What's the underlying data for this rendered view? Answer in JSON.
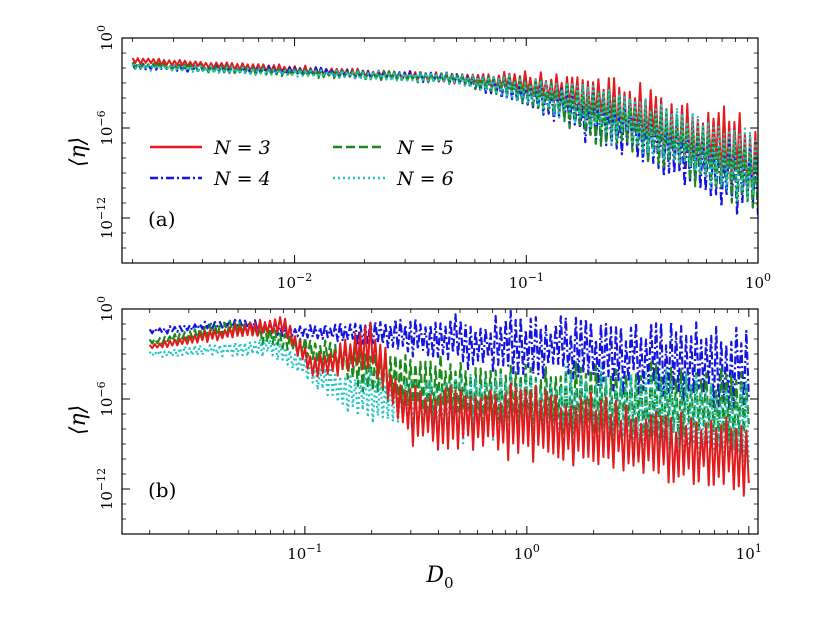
{
  "chart_data": [
    {
      "type": "line",
      "panel_label": "(a)",
      "xscale": "log",
      "yscale": "log",
      "xlim": [
        0.0018,
        1.0
      ],
      "ylim": [
        1e-15,
        1.0
      ],
      "xticks": [
        {
          "value": 0.01,
          "base": "10",
          "exp": "−2"
        },
        {
          "value": 0.1,
          "base": "10",
          "exp": "−1"
        },
        {
          "value": 1.0,
          "base": "10",
          "exp": "0"
        }
      ],
      "yticks": [
        {
          "value": 1.0,
          "base": "10",
          "exp": "0"
        },
        {
          "value": 1e-06,
          "base": "10",
          "exp": "−6"
        },
        {
          "value": 1e-12,
          "base": "10",
          "exp": "−12"
        }
      ],
      "xlabel": "",
      "ylabel": "⟨η⟩",
      "x_range": [
        0.002,
        1.0
      ],
      "legend": [
        {
          "label": "N = 3",
          "color": "#e41a1c",
          "dash": "solid"
        },
        {
          "label": "N = 5",
          "color": "#1a8a1a",
          "dash": "dashed"
        },
        {
          "label": "N = 4",
          "color": "#1515e0",
          "dash": "dashdot"
        },
        {
          "label": "N = 6",
          "color": "#22c4c4",
          "dash": "dotted"
        }
      ],
      "series": [
        {
          "name": "N = 3",
          "color": "#e41a1c",
          "dash": "solid",
          "trend": [
            [
              0.002,
              -1.5
            ],
            [
              0.01,
              -2.1
            ],
            [
              0.05,
              -2.7
            ],
            [
              0.1,
              -3.0
            ],
            [
              0.3,
              -5.0
            ],
            [
              1.0,
              -8.2
            ]
          ],
          "noise": [
            [
              0.002,
              0.2
            ],
            [
              0.05,
              0.35
            ],
            [
              0.1,
              0.7
            ],
            [
              0.2,
              1.8
            ],
            [
              1.0,
              2.6
            ]
          ],
          "seed": 3
        },
        {
          "name": "N = 4",
          "color": "#1515e0",
          "dash": "dashdot",
          "trend": [
            [
              0.002,
              -1.9
            ],
            [
              0.01,
              -2.2
            ],
            [
              0.05,
              -2.7
            ],
            [
              0.1,
              -3.8
            ],
            [
              0.3,
              -6.5
            ],
            [
              1.0,
              -10.0
            ]
          ],
          "noise": [
            [
              0.002,
              0.2
            ],
            [
              0.05,
              0.35
            ],
            [
              0.1,
              0.9
            ],
            [
              0.2,
              1.8
            ],
            [
              1.0,
              2.3
            ]
          ],
          "seed": 4
        },
        {
          "name": "N = 5",
          "color": "#1a8a1a",
          "dash": "dashed",
          "trend": [
            [
              0.002,
              -1.8
            ],
            [
              0.01,
              -2.3
            ],
            [
              0.05,
              -2.7
            ],
            [
              0.1,
              -3.5
            ],
            [
              0.3,
              -6.0
            ],
            [
              1.0,
              -9.5
            ]
          ],
          "noise": [
            [
              0.002,
              0.2
            ],
            [
              0.05,
              0.35
            ],
            [
              0.1,
              0.9
            ],
            [
              0.2,
              1.8
            ],
            [
              1.0,
              2.3
            ]
          ],
          "seed": 5
        },
        {
          "name": "N = 6",
          "color": "#22c4c4",
          "dash": "dotted",
          "trend": [
            [
              0.002,
              -1.9
            ],
            [
              0.01,
              -2.3
            ],
            [
              0.05,
              -2.7
            ],
            [
              0.1,
              -3.5
            ],
            [
              0.3,
              -5.5
            ],
            [
              1.0,
              -9.0
            ]
          ],
          "noise": [
            [
              0.002,
              0.2
            ],
            [
              0.05,
              0.35
            ],
            [
              0.1,
              0.9
            ],
            [
              0.2,
              1.8
            ],
            [
              1.0,
              2.6
            ]
          ],
          "seed": 6
        }
      ]
    },
    {
      "type": "line",
      "panel_label": "(b)",
      "xscale": "log",
      "yscale": "log",
      "xlim": [
        0.015,
        11.0
      ],
      "ylim": [
        1e-15,
        1.0
      ],
      "xticks": [
        {
          "value": 0.1,
          "base": "10",
          "exp": "−1"
        },
        {
          "value": 1.0,
          "base": "10",
          "exp": "0"
        },
        {
          "value": 10.0,
          "base": "10",
          "exp": "1"
        }
      ],
      "yticks": [
        {
          "value": 1.0,
          "base": "10",
          "exp": "0"
        },
        {
          "value": 1e-06,
          "base": "10",
          "exp": "−6"
        },
        {
          "value": 1e-12,
          "base": "10",
          "exp": "−12"
        }
      ],
      "xlabel_main": "D",
      "xlabel_sub": "0",
      "ylabel": "⟨η⟩",
      "x_range": [
        0.02,
        10.0
      ],
      "series": [
        {
          "name": "N = 4",
          "color": "#1515e0",
          "dash": "dashdot",
          "trend": [
            [
              0.02,
              -1.5
            ],
            [
              0.05,
              -0.9
            ],
            [
              0.08,
              -1.5
            ],
            [
              0.2,
              -1.6
            ],
            [
              1.0,
              -2.5
            ],
            [
              10.0,
              -4.0
            ]
          ],
          "noise": [
            [
              0.02,
              0.2
            ],
            [
              0.1,
              0.4
            ],
            [
              0.3,
              1.2
            ],
            [
              1.0,
              2.2
            ],
            [
              10.0,
              2.8
            ]
          ],
          "seed": 14
        },
        {
          "name": "N = 5",
          "color": "#1a8a1a",
          "dash": "dashed",
          "trend": [
            [
              0.02,
              -2.2
            ],
            [
              0.05,
              -1.2
            ],
            [
              0.1,
              -2.5
            ],
            [
              0.3,
              -5.0
            ],
            [
              1.0,
              -6.0
            ],
            [
              10.0,
              -6.5
            ]
          ],
          "noise": [
            [
              0.02,
              0.2
            ],
            [
              0.1,
              0.8
            ],
            [
              0.3,
              2.0
            ],
            [
              1.0,
              2.5
            ],
            [
              10.0,
              2.8
            ]
          ],
          "seed": 15
        },
        {
          "name": "N = 6",
          "color": "#22c4c4",
          "dash": "dotted",
          "trend": [
            [
              0.02,
              -3.0
            ],
            [
              0.07,
              -2.5
            ],
            [
              0.15,
              -5.5
            ],
            [
              0.3,
              -6.5
            ],
            [
              1.0,
              -6.5
            ],
            [
              10.0,
              -7.5
            ]
          ],
          "noise": [
            [
              0.02,
              0.2
            ],
            [
              0.1,
              0.8
            ],
            [
              0.3,
              2.2
            ],
            [
              1.0,
              2.5
            ],
            [
              10.0,
              3.0
            ]
          ],
          "seed": 16
        },
        {
          "name": "N = 3",
          "color": "#e41a1c",
          "dash": "solid",
          "trend": [
            [
              0.02,
              -2.5
            ],
            [
              0.08,
              -1.0
            ],
            [
              0.11,
              -4.0
            ],
            [
              0.2,
              -2.5
            ],
            [
              0.28,
              -7.0
            ],
            [
              1.0,
              -7.5
            ],
            [
              10.0,
              -10.0
            ]
          ],
          "noise": [
            [
              0.02,
              0.2
            ],
            [
              0.1,
              0.7
            ],
            [
              0.3,
              2.0
            ],
            [
              1.0,
              2.4
            ],
            [
              10.0,
              2.3
            ]
          ],
          "seed": 13
        }
      ]
    }
  ]
}
